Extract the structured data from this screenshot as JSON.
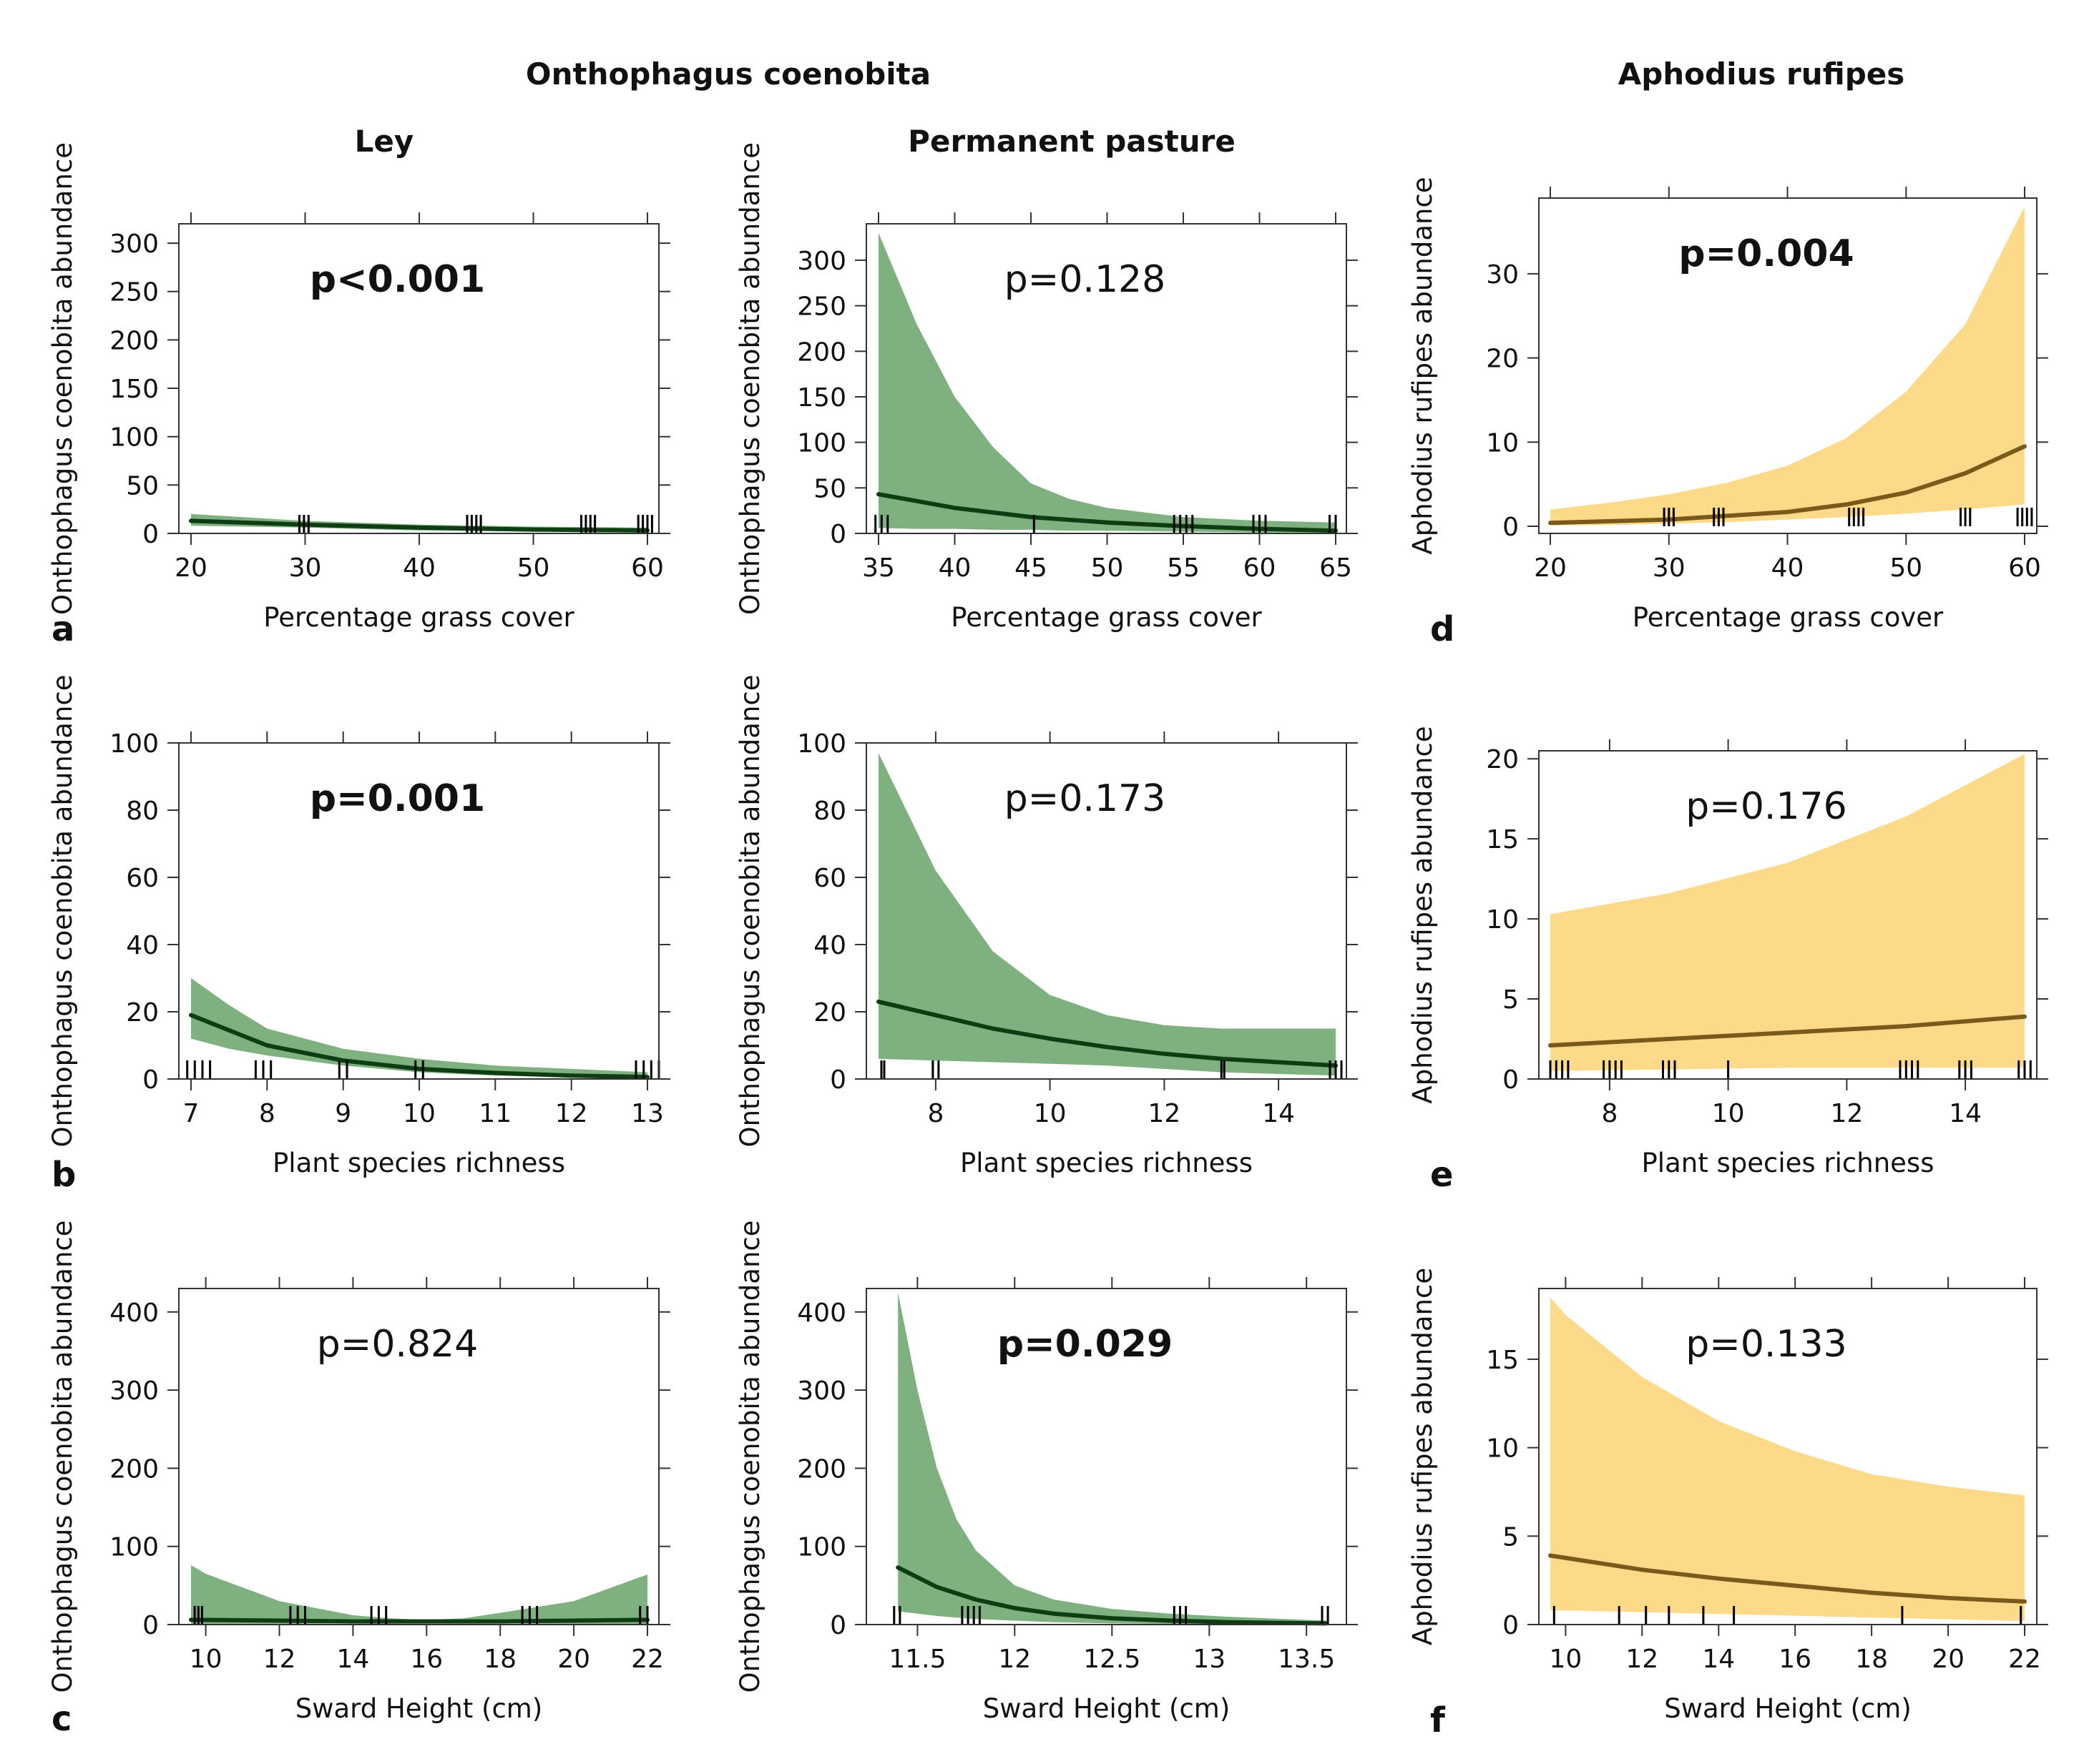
{
  "headers": {
    "onthophagus": "Onthophagus coenobita",
    "aphodius": "Aphodius rufipes",
    "ley": "Ley",
    "permanent": "Permanent pasture"
  },
  "colors": {
    "green_band": "#7fb07f",
    "green_line": "#0e3d14",
    "orange_band": "#fdd98a",
    "orange_line": "#7a5a1a",
    "rug": "#000000",
    "axis": "#333333"
  },
  "chart_data": [
    {
      "id": "ley-grass",
      "type": "line",
      "panel_label": "",
      "ylabel": "Onthophagus coenobita abundance",
      "xlabel": "Percentage grass cover",
      "p_value": "p<0.001",
      "p_bold": true,
      "xlim": [
        20,
        60
      ],
      "ylim": [
        0,
        320
      ],
      "xticks": [
        20,
        30,
        40,
        50,
        60
      ],
      "yticks": [
        0,
        50,
        100,
        150,
        200,
        250,
        300
      ],
      "band": "green",
      "series": [
        {
          "name": "fit",
          "x": [
            20,
            30,
            40,
            50,
            60
          ],
          "y": [
            13,
            9,
            6,
            4,
            3
          ]
        }
      ],
      "ci": {
        "x": [
          20,
          30,
          40,
          50,
          60
        ],
        "lower": [
          8,
          6,
          3,
          2,
          1
        ],
        "upper": [
          20,
          13,
          9,
          7,
          6
        ]
      },
      "rug": [
        29.5,
        29.9,
        30.3,
        44.2,
        44.6,
        45.0,
        45.4,
        54.2,
        54.6,
        55.0,
        55.4,
        59.2,
        59.6,
        60.0,
        60.4
      ]
    },
    {
      "id": "pp-grass",
      "type": "line",
      "panel_label": "",
      "ylabel": "Onthophagus coenobita abundance",
      "xlabel": "Percentage grass cover",
      "p_value": "p=0.128",
      "p_bold": false,
      "xlim": [
        35,
        65
      ],
      "ylim": [
        0,
        340
      ],
      "xticks": [
        35,
        40,
        45,
        50,
        55,
        60,
        65
      ],
      "yticks": [
        0,
        50,
        100,
        150,
        200,
        250,
        300
      ],
      "band": "green",
      "series": [
        {
          "name": "fit",
          "x": [
            35,
            40,
            45,
            50,
            55,
            60,
            65
          ],
          "y": [
            43,
            28,
            18,
            12,
            8,
            5,
            3
          ]
        }
      ],
      "ci": {
        "x": [
          35,
          37.5,
          40,
          42.5,
          45,
          47.5,
          50,
          55,
          60,
          65
        ],
        "lower": [
          6,
          5,
          5,
          4,
          4,
          3,
          3,
          2,
          1,
          1
        ],
        "upper": [
          330,
          230,
          150,
          95,
          55,
          38,
          28,
          18,
          14,
          12
        ]
      },
      "rug": [
        34.8,
        35.2,
        35.6,
        45.2,
        54.4,
        54.8,
        55.2,
        55.6,
        59.6,
        60.0,
        60.4,
        64.6,
        65.0
      ]
    },
    {
      "id": "ap-grass",
      "type": "line",
      "panel_label": "d",
      "ylabel": "Aphodius rufipes abundance",
      "xlabel": "Percentage grass cover",
      "p_value": "p=0.004",
      "p_bold": true,
      "xlim": [
        20,
        60
      ],
      "ylim": [
        0,
        39
      ],
      "xticks": [
        20,
        30,
        40,
        50,
        60
      ],
      "yticks": [
        0,
        10,
        20,
        30
      ],
      "band": "orange",
      "series": [
        {
          "name": "fit",
          "x": [
            20,
            30,
            40,
            45,
            50,
            55,
            60
          ],
          "y": [
            0.4,
            0.8,
            1.7,
            2.6,
            4.0,
            6.3,
            9.5
          ]
        }
      ],
      "ci": {
        "x": [
          20,
          25,
          30,
          35,
          40,
          45,
          50,
          55,
          60
        ],
        "lower": [
          0.1,
          0.15,
          0.3,
          0.5,
          0.8,
          1.1,
          1.5,
          2.0,
          2.6
        ],
        "upper": [
          2.0,
          2.8,
          3.8,
          5.2,
          7.2,
          10.5,
          16,
          24,
          38
        ]
      },
      "rug": [
        29.6,
        30.0,
        30.4,
        33.8,
        34.2,
        34.6,
        45.2,
        45.6,
        46.0,
        46.4,
        54.6,
        55.0,
        55.4,
        59.4,
        59.8,
        60.2,
        60.6
      ]
    },
    {
      "id": "ley-rich",
      "type": "line",
      "panel_label": "",
      "ylabel": "Onthophagus coenobita abundance",
      "xlabel": "Plant species richness",
      "p_value": "p=0.001",
      "p_bold": true,
      "xlim": [
        7,
        13
      ],
      "ylim": [
        0,
        100
      ],
      "xticks": [
        7,
        8,
        9,
        10,
        11,
        12,
        13
      ],
      "yticks": [
        0,
        20,
        40,
        60,
        80,
        100
      ],
      "band": "green",
      "series": [
        {
          "name": "fit",
          "x": [
            7,
            8,
            9,
            10,
            11,
            12,
            13
          ],
          "y": [
            19,
            10,
            5.5,
            3,
            1.8,
            1,
            0.6
          ]
        }
      ],
      "ci": {
        "x": [
          7,
          7.5,
          8,
          9,
          10,
          11,
          12,
          13
        ],
        "lower": [
          12,
          9,
          7,
          4,
          2,
          1,
          0.5,
          0.2
        ],
        "upper": [
          30,
          22,
          15,
          9,
          6,
          4,
          3,
          2
        ]
      },
      "rug": [
        6.95,
        7.05,
        7.15,
        7.25,
        7.85,
        7.95,
        8.05,
        8.95,
        9.05,
        9.95,
        10.05,
        12.85,
        12.95,
        13.05,
        13.15
      ]
    },
    {
      "id": "pp-rich",
      "type": "line",
      "panel_label": "",
      "ylabel": "Onthophagus coenobita abundance",
      "xlabel": "Plant species richness",
      "p_value": "p=0.173",
      "p_bold": false,
      "xlim": [
        7,
        15
      ],
      "ylim": [
        0,
        100
      ],
      "xticks": [
        8,
        10,
        12,
        14
      ],
      "yticks": [
        0,
        20,
        40,
        60,
        80,
        100
      ],
      "band": "green",
      "series": [
        {
          "name": "fit",
          "x": [
            7,
            8,
            9,
            10,
            11,
            12,
            13,
            14,
            15
          ],
          "y": [
            23,
            19,
            15,
            12,
            9.5,
            7.5,
            6,
            5,
            4
          ]
        }
      ],
      "ci": {
        "x": [
          7,
          8,
          9,
          10,
          11,
          12,
          13,
          14,
          15
        ],
        "lower": [
          6,
          5.5,
          5,
          4.5,
          4,
          3,
          2,
          1.5,
          1
        ],
        "upper": [
          97,
          62,
          38,
          25,
          19,
          16,
          15,
          15,
          15
        ]
      },
      "rug": [
        7.05,
        7.1,
        7.95,
        8.05,
        13.0,
        13.05,
        14.9,
        15.0,
        15.1
      ]
    },
    {
      "id": "ap-rich",
      "type": "line",
      "panel_label": "e",
      "ylabel": "Aphodius rufipes abundance",
      "xlabel": "Plant species richness",
      "p_value": "p=0.176",
      "p_bold": false,
      "xlim": [
        7,
        15
      ],
      "ylim": [
        0,
        20.5
      ],
      "xticks": [
        8,
        10,
        12,
        14
      ],
      "yticks": [
        0,
        5,
        10,
        15,
        20
      ],
      "band": "orange",
      "series": [
        {
          "name": "fit",
          "x": [
            7,
            9,
            11,
            13,
            15
          ],
          "y": [
            2.1,
            2.5,
            2.9,
            3.3,
            3.9
          ]
        }
      ],
      "ci": {
        "x": [
          7,
          9,
          11,
          13,
          15
        ],
        "lower": [
          0.5,
          0.6,
          0.7,
          0.7,
          0.7
        ],
        "upper": [
          10.3,
          11.6,
          13.5,
          16.4,
          20.3
        ]
      },
      "rug": [
        7.0,
        7.1,
        7.2,
        7.3,
        7.9,
        8.0,
        8.1,
        8.2,
        8.9,
        9.0,
        9.1,
        10.0,
        12.9,
        13.0,
        13.1,
        13.2,
        13.9,
        14.0,
        14.1,
        14.9,
        15.0,
        15.1
      ]
    },
    {
      "id": "ley-sward",
      "type": "line",
      "panel_label": "",
      "ylabel": "Onthophagus coenobita abundance",
      "xlabel": "Sward Height (cm)",
      "p_value": "p=0.824",
      "p_bold": false,
      "xlim": [
        9.6,
        22
      ],
      "ylim": [
        0,
        430
      ],
      "xticks": [
        10,
        12,
        14,
        16,
        18,
        20,
        22
      ],
      "yticks": [
        0,
        100,
        200,
        300,
        400
      ],
      "band": "green",
      "series": [
        {
          "name": "fit",
          "x": [
            9.6,
            12,
            14,
            16,
            18,
            20,
            22
          ],
          "y": [
            6,
            5,
            4,
            4,
            4,
            5,
            6
          ]
        }
      ],
      "ci": {
        "x": [
          9.6,
          10,
          12,
          14,
          15,
          16,
          17,
          18,
          20,
          22
        ],
        "lower": [
          1,
          1,
          1,
          1.5,
          2,
          2,
          2,
          1.5,
          1,
          0.5
        ],
        "upper": [
          76,
          65,
          30,
          12,
          8,
          6,
          8,
          15,
          30,
          64
        ]
      },
      "rug": [
        9.7,
        9.8,
        9.9,
        12.3,
        12.5,
        12.7,
        14.5,
        14.7,
        14.9,
        18.6,
        18.8,
        19.0,
        21.8,
        22.0
      ]
    },
    {
      "id": "pp-sward",
      "type": "line",
      "panel_label": "",
      "ylabel": "Onthophagus coenobita abundance",
      "xlabel": "Sward Height (cm)",
      "p_value": "p=0.029",
      "p_bold": true,
      "xlim": [
        11.3,
        13.65
      ],
      "ylim": [
        0,
        430
      ],
      "xticks": [
        11.5,
        12.0,
        12.5,
        13.0,
        13.5
      ],
      "yticks": [
        0,
        100,
        200,
        300,
        400
      ],
      "band": "green",
      "series": [
        {
          "name": "fit",
          "x": [
            11.4,
            11.6,
            11.8,
            12.0,
            12.2,
            12.5,
            12.8,
            13.1,
            13.6
          ],
          "y": [
            73,
            48,
            32,
            21,
            14,
            8,
            5,
            3,
            1.5
          ]
        }
      ],
      "ci": {
        "x": [
          11.4,
          11.5,
          11.6,
          11.7,
          11.8,
          12.0,
          12.2,
          12.5,
          12.8,
          13.1,
          13.6
        ],
        "lower": [
          17,
          14,
          11,
          9,
          7,
          5,
          3,
          1.5,
          0.8,
          0.4,
          0.2
        ],
        "upper": [
          425,
          300,
          200,
          135,
          95,
          50,
          32,
          20,
          14,
          10,
          5
        ]
      },
      "rug": [
        11.38,
        11.41,
        11.73,
        11.76,
        11.79,
        11.82,
        12.82,
        12.85,
        12.88,
        13.58,
        13.61
      ]
    },
    {
      "id": "ap-sward",
      "type": "line",
      "panel_label": "f",
      "ylabel": "Aphodius rufipes abundance",
      "xlabel": "Sward Height (cm)",
      "p_value": "p=0.133",
      "p_bold": false,
      "xlim": [
        9.6,
        22
      ],
      "ylim": [
        0,
        19
      ],
      "xticks": [
        10,
        12,
        14,
        16,
        18,
        20,
        22
      ],
      "yticks": [
        0,
        5,
        10,
        15
      ],
      "band": "orange",
      "series": [
        {
          "name": "fit",
          "x": [
            9.6,
            12,
            14,
            16,
            18,
            20,
            22
          ],
          "y": [
            3.9,
            3.1,
            2.6,
            2.2,
            1.8,
            1.5,
            1.3
          ]
        }
      ],
      "ci": {
        "x": [
          9.6,
          10,
          12,
          14,
          16,
          18,
          20,
          22
        ],
        "lower": [
          0.8,
          0.8,
          0.7,
          0.6,
          0.5,
          0.4,
          0.3,
          0.2
        ],
        "upper": [
          18.5,
          17.5,
          14,
          11.5,
          9.8,
          8.5,
          7.8,
          7.3
        ]
      },
      "rug": [
        9.7,
        11.4,
        12.1,
        12.7,
        13.6,
        14.4,
        18.8,
        21.9
      ]
    }
  ],
  "panel_letters": {
    "a": "a",
    "b": "b",
    "c": "c"
  }
}
